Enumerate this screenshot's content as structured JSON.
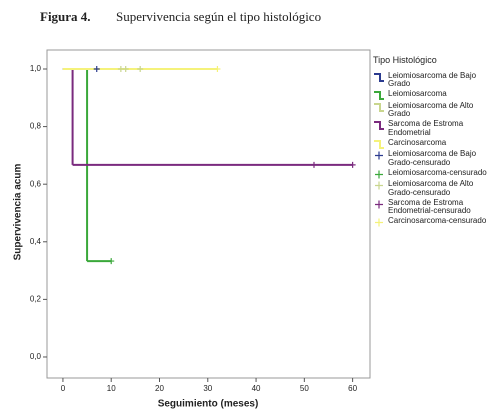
{
  "chart_data": {
    "type": "survival",
    "title_prefix": "Figura 4.",
    "title": "Supervivencia según el tipo histológico",
    "xlabel": "Seguimiento (meses)",
    "ylabel": "Supervivencia acum",
    "legend_title": "Tipo Histológico",
    "xlim": [
      -3.3,
      63.6
    ],
    "ylim": [
      -0.073,
      1.066
    ],
    "xticks": [
      0,
      10,
      20,
      30,
      40,
      50,
      60
    ],
    "yticks": [
      {
        "value": 0,
        "label": "0,0"
      },
      {
        "value": 0.2,
        "label": "0,2"
      },
      {
        "value": 0.4,
        "label": "0,4"
      },
      {
        "value": 0.6,
        "label": "0,6"
      },
      {
        "value": 0.8,
        "label": "0,8"
      },
      {
        "value": 1,
        "label": "1,0"
      }
    ],
    "series": [
      {
        "name": "Leiomiosarcoma de Bajo Grado",
        "color": "#2b3b8f",
        "style": "step",
        "x": [
          0,
          7
        ],
        "values": [
          1,
          1
        ]
      },
      {
        "name": "Leiomiosarcoma",
        "color": "#3aa83a",
        "style": "step",
        "x": [
          0,
          5,
          10
        ],
        "values": [
          1,
          0.333,
          0.333
        ]
      },
      {
        "name": "Leiomiosarcoma de Alto Grado",
        "color": "#c9d68e",
        "style": "step",
        "x": [
          0,
          16
        ],
        "values": [
          1,
          1
        ]
      },
      {
        "name": "Sarcoma de Estroma Endometrial",
        "color": "#7a2a7e",
        "style": "step",
        "x": [
          0,
          2,
          60
        ],
        "values": [
          1,
          0.667,
          0.667
        ]
      },
      {
        "name": "Carcinosarcoma",
        "color": "#f5f27a",
        "style": "step",
        "x": [
          0,
          32
        ],
        "values": [
          1,
          1
        ]
      },
      {
        "name": "Leiomiosarcoma de Bajo Grado-censurado",
        "color": "#2b3b8f",
        "style": "censored",
        "x": [
          7
        ],
        "values": [
          1
        ]
      },
      {
        "name": "Leiomiosarcoma-censurado",
        "color": "#3aa83a",
        "style": "censored",
        "x": [
          10
        ],
        "values": [
          0.333
        ]
      },
      {
        "name": "Leiomiosarcoma de Alto Grado-censurado",
        "color": "#c9d68e",
        "style": "censored",
        "x": [
          12,
          13,
          16
        ],
        "values": [
          1,
          1,
          1
        ]
      },
      {
        "name": "Sarcoma de Estroma Endometrial-censurado",
        "color": "#7a2a7e",
        "style": "censored",
        "x": [
          52,
          60
        ],
        "values": [
          0.667,
          0.667
        ]
      },
      {
        "name": "Carcinosarcoma-censurado",
        "color": "#f5f27a",
        "style": "censored",
        "x": [
          32
        ],
        "values": [
          1
        ]
      }
    ]
  }
}
